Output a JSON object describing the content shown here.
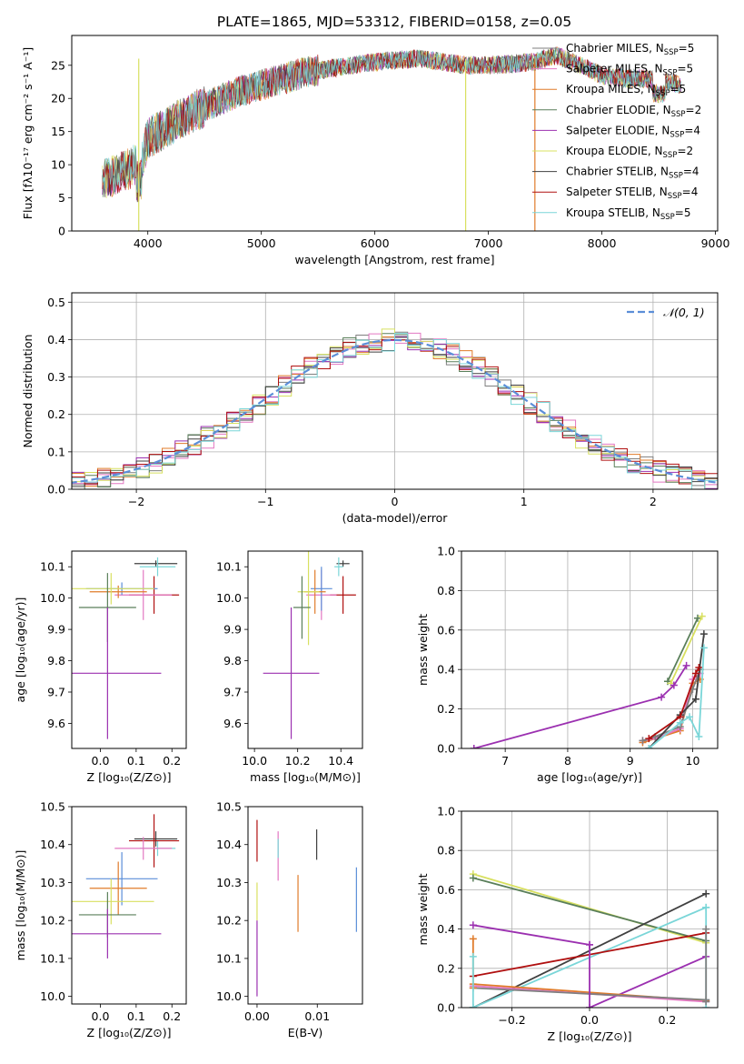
{
  "page_title": "PLATE=1865, MJD=53312, FIBERID=0158, z=0.05",
  "colors": {
    "grid": "#b0b0b0",
    "gaussian": "#5b8ed8"
  },
  "chart_data": [
    {
      "id": "spectrum",
      "type": "line",
      "title": "PLATE=1865, MJD=53312, FIBERID=0158, z=0.05",
      "xlabel": "wavelength [Angstrom, rest frame]",
      "ylabel": "Flux [fλ10⁻¹⁷ erg cm⁻² s⁻¹ A⁻¹]",
      "xlim": [
        3330,
        9020
      ],
      "ylim": [
        0,
        29.5
      ],
      "xticks": [
        4000,
        5000,
        6000,
        7000,
        8000,
        9000
      ],
      "yticks": [
        0,
        5,
        10,
        15,
        20,
        25
      ],
      "grid": false,
      "legend_position": "top-right",
      "continuum_envelope": {
        "x": [
          3600,
          3700,
          3850,
          3950,
          4000,
          4200,
          4400,
          4600,
          4800,
          5000,
          5200,
          5400,
          5600,
          5800,
          6000,
          6200,
          6400,
          6600,
          6800,
          7000,
          7200,
          7400,
          7600,
          7800,
          8000,
          8200,
          8400,
          8600,
          8700
        ],
        "y": [
          7.5,
          8.5,
          9.5,
          11,
          14,
          16,
          18,
          19.5,
          21,
          22,
          23,
          24,
          24.5,
          25,
          25.5,
          25.8,
          26,
          25.5,
          25,
          25,
          25.2,
          25.5,
          26.5,
          25,
          23.5,
          23,
          23,
          22.5,
          22
        ]
      },
      "series": [
        {
          "name": "Chabrier MILES, Nₛₛₚ=5",
          "label_main": "Chabrier MILES, N",
          "label_sub": "SSP",
          "label_tail": "=5",
          "color": "#7f7f7f"
        },
        {
          "name": "Salpeter MILES, N=5",
          "label_main": "Salpeter MILES, N",
          "label_sub": "SSP",
          "label_tail": "=5",
          "color": "#e377c2"
        },
        {
          "name": "Kroupa MILES, N=5",
          "label_main": "Kroupa MILES, N",
          "label_sub": "SSP",
          "label_tail": "=5",
          "color": "#e07b2a"
        },
        {
          "name": "Chabrier ELODIE, N=2",
          "label_main": "Chabrier ELODIE, N",
          "label_sub": "SSP",
          "label_tail": "=2",
          "color": "#5a7f5a"
        },
        {
          "name": "Salpeter ELODIE, N=4",
          "label_main": "Salpeter ELODIE, N",
          "label_sub": "SSP",
          "label_tail": "=4",
          "color": "#9b30b0"
        },
        {
          "name": "Kroupa ELODIE, N=2",
          "label_main": "Kroupa ELODIE, N",
          "label_sub": "SSP",
          "label_tail": "=2",
          "color": "#d8e060"
        },
        {
          "name": "Chabrier STELIB, N=4",
          "label_main": "Chabrier STELIB, N",
          "label_sub": "SSP",
          "label_tail": "=4",
          "color": "#404040"
        },
        {
          "name": "Salpeter STELIB, N=4",
          "label_main": "Salpeter STELIB, N",
          "label_sub": "SSP",
          "label_tail": "=4",
          "color": "#b01010"
        },
        {
          "name": "Kroupa STELIB, N=5",
          "label_main": "Kroupa STELIB, N",
          "label_sub": "SSP",
          "label_tail": "=5",
          "color": "#7ad6d8"
        }
      ]
    },
    {
      "id": "residuals",
      "type": "histogram",
      "xlabel": "(data-model)/error",
      "ylabel": "Normed distribution",
      "xlim": [
        -2.5,
        2.5
      ],
      "ylim": [
        0,
        0.525
      ],
      "xticks": [
        -2,
        -1,
        0,
        1,
        2
      ],
      "yticks": [
        0.0,
        0.1,
        0.2,
        0.3,
        0.4,
        0.5
      ],
      "grid": true,
      "legend_position": "top-right",
      "legend_entry": "𝒩(0, 1)",
      "bin_width": 0.1
    },
    {
      "id": "age_vs_Z",
      "type": "scatter",
      "xlabel": "Z [log₁₀(Z/Z⊙)]",
      "ylabel": "age  [log₁₀(age/yr)]",
      "xlim": [
        -0.08,
        0.24
      ],
      "ylim": [
        9.52,
        10.15
      ],
      "xticks": [
        0.0,
        0.1,
        0.2
      ],
      "yticks": [
        9.6,
        9.7,
        9.8,
        9.9,
        10.0,
        10.1
      ],
      "points": [
        {
          "x": 0.155,
          "y": 10.11,
          "xerr": 0.06,
          "yerr": 0.01,
          "color": "#404040"
        },
        {
          "x": 0.16,
          "y": 10.1,
          "xerr": 0.05,
          "yerr": 0.03,
          "color": "#7ad6d8"
        },
        {
          "x": 0.15,
          "y": 10.01,
          "xerr": 0.07,
          "yerr": 0.06,
          "color": "#b01010"
        },
        {
          "x": 0.12,
          "y": 10.01,
          "xerr": 0.08,
          "yerr": 0.08,
          "color": "#e377c2"
        },
        {
          "x": 0.06,
          "y": 10.03,
          "xerr": 0.1,
          "yerr": 0.02,
          "color": "#5b8ed8"
        },
        {
          "x": 0.05,
          "y": 10.02,
          "xerr": 0.08,
          "yerr": 0.02,
          "color": "#e07b2a"
        },
        {
          "x": 0.03,
          "y": 10.03,
          "xerr": 0.12,
          "yerr": 0.05,
          "color": "#d8e060"
        },
        {
          "x": 0.02,
          "y": 9.97,
          "xerr": 0.08,
          "yerr": 0.11,
          "color": "#5a7f5a"
        },
        {
          "x": 0.02,
          "y": 9.76,
          "xerr": 0.15,
          "yerr": 0.21,
          "color": "#9b30b0"
        }
      ]
    },
    {
      "id": "age_vs_mass",
      "type": "scatter",
      "xlabel": "mass [log₁₀(M/M⊙)]",
      "xlim": [
        9.97,
        10.5
      ],
      "ylim": [
        9.52,
        10.15
      ],
      "xticks": [
        10.0,
        10.2,
        10.4
      ],
      "yticks": [
        9.6,
        9.7,
        9.8,
        9.9,
        10.0,
        10.1
      ],
      "points": [
        {
          "x": 10.41,
          "y": 10.11,
          "xerr": 0.03,
          "yerr": 0.01,
          "color": "#404040"
        },
        {
          "x": 10.39,
          "y": 10.1,
          "xerr": 0.02,
          "yerr": 0.03,
          "color": "#7ad6d8"
        },
        {
          "x": 10.41,
          "y": 10.01,
          "xerr": 0.06,
          "yerr": 0.06,
          "color": "#b01010"
        },
        {
          "x": 10.31,
          "y": 10.01,
          "xerr": 0.07,
          "yerr": 0.08,
          "color": "#e377c2"
        },
        {
          "x": 10.31,
          "y": 10.03,
          "xerr": 0.05,
          "yerr": 0.07,
          "color": "#5b8ed8"
        },
        {
          "x": 10.28,
          "y": 10.02,
          "xerr": 0.05,
          "yerr": 0.07,
          "color": "#e07b2a"
        },
        {
          "x": 10.25,
          "y": 10.02,
          "xerr": 0.05,
          "yerr": 0.17,
          "color": "#d8e060"
        },
        {
          "x": 10.22,
          "y": 9.97,
          "xerr": 0.04,
          "yerr": 0.1,
          "color": "#5a7f5a"
        },
        {
          "x": 10.17,
          "y": 9.76,
          "xerr": 0.13,
          "yerr": 0.21,
          "color": "#9b30b0"
        }
      ]
    },
    {
      "id": "massweight_vs_age",
      "type": "line",
      "xlabel": "age  [log₁₀(age/yr)]",
      "ylabel": "mass weight",
      "xlim": [
        6.3,
        10.4
      ],
      "ylim": [
        0,
        1.0
      ],
      "xticks": [
        7,
        8,
        9,
        10
      ],
      "yticks": [
        0.0,
        0.2,
        0.4,
        0.6,
        0.8,
        1.0
      ],
      "grid": true,
      "series": [
        {
          "color": "#e07b2a",
          "x": [
            9.2,
            9.4,
            9.8,
            10.0,
            10.12
          ],
          "y": [
            0.03,
            0.05,
            0.09,
            0.33,
            0.35
          ]
        },
        {
          "color": "#e377c2",
          "x": [
            9.2,
            9.4,
            9.8,
            10.0,
            10.12
          ],
          "y": [
            0.04,
            0.05,
            0.1,
            0.35,
            0.38
          ]
        },
        {
          "color": "#7f7f7f",
          "x": [
            9.2,
            9.4,
            9.8,
            10.0,
            10.12
          ],
          "y": [
            0.04,
            0.06,
            0.11,
            0.3,
            0.4
          ]
        },
        {
          "color": "#5a7f5a",
          "x": [
            9.6,
            10.08
          ],
          "y": [
            0.34,
            0.66
          ]
        },
        {
          "color": "#d8e060",
          "x": [
            9.65,
            10.15
          ],
          "y": [
            0.33,
            0.67
          ]
        },
        {
          "color": "#9b30b0",
          "x": [
            6.5,
            9.5,
            9.7,
            9.9
          ],
          "y": [
            0.0,
            0.26,
            0.32,
            0.42
          ]
        },
        {
          "color": "#404040",
          "x": [
            9.3,
            9.8,
            10.05,
            10.18
          ],
          "y": [
            0.0,
            0.17,
            0.25,
            0.58
          ]
        },
        {
          "color": "#b01010",
          "x": [
            9.3,
            9.8,
            10.05,
            10.1
          ],
          "y": [
            0.05,
            0.16,
            0.38,
            0.41
          ]
        },
        {
          "color": "#7ad6d8",
          "x": [
            9.3,
            9.8,
            9.95,
            10.1,
            10.18
          ],
          "y": [
            0.0,
            0.13,
            0.16,
            0.06,
            0.51
          ]
        }
      ]
    },
    {
      "id": "mass_vs_Z",
      "type": "scatter",
      "xlabel": "Z [log₁₀(Z/Z⊙)]",
      "ylabel": "mass [log₁₀(M/M⊙)]",
      "xlim": [
        -0.08,
        0.24
      ],
      "ylim": [
        9.98,
        10.5
      ],
      "xticks": [
        0.0,
        0.1,
        0.2
      ],
      "yticks": [
        10.0,
        10.1,
        10.2,
        10.3,
        10.4,
        10.5
      ],
      "points": [
        {
          "x": 0.155,
          "y": 10.415,
          "xerr": 0.06,
          "yerr": 0.02,
          "color": "#404040"
        },
        {
          "x": 0.16,
          "y": 10.39,
          "xerr": 0.05,
          "yerr": 0.02,
          "color": "#7ad6d8"
        },
        {
          "x": 0.15,
          "y": 10.41,
          "xerr": 0.07,
          "yerr": 0.07,
          "color": "#b01010"
        },
        {
          "x": 0.12,
          "y": 10.39,
          "xerr": 0.08,
          "yerr": 0.03,
          "color": "#e377c2"
        },
        {
          "x": 0.06,
          "y": 10.31,
          "xerr": 0.1,
          "yerr": 0.07,
          "color": "#5b8ed8"
        },
        {
          "x": 0.05,
          "y": 10.285,
          "xerr": 0.08,
          "yerr": 0.07,
          "color": "#e07b2a"
        },
        {
          "x": 0.03,
          "y": 10.25,
          "xerr": 0.12,
          "yerr": 0.06,
          "color": "#d8e060"
        },
        {
          "x": 0.02,
          "y": 10.215,
          "xerr": 0.08,
          "yerr": 0.06,
          "color": "#5a7f5a"
        },
        {
          "x": 0.02,
          "y": 10.165,
          "xerr": 0.15,
          "yerr": 0.065,
          "color": "#9b30b0"
        }
      ]
    },
    {
      "id": "mass_vs_ebv",
      "type": "scatter",
      "xlabel": "E(B-V)",
      "xlim": [
        -0.0015,
        0.0175
      ],
      "ylim": [
        9.98,
        10.5
      ],
      "xticks": [
        0.0,
        0.01
      ],
      "yticks": [
        10.0,
        10.1,
        10.2,
        10.3,
        10.4,
        10.5
      ],
      "points": [
        {
          "x": 0.0,
          "y": 10.41,
          "xerr": 0.0,
          "yerr": 0.055,
          "color": "#b01010"
        },
        {
          "x": 0.0,
          "y": 10.25,
          "xerr": 0.0,
          "yerr": 0.05,
          "color": "#d8e060"
        },
        {
          "x": 0.0,
          "y": 10.1,
          "xerr": 0.0,
          "yerr": 0.1,
          "color": "#9b30b0"
        },
        {
          "x": 0.0035,
          "y": 10.37,
          "xerr": 0.0,
          "yerr": 0.065,
          "color": "#e377c2"
        },
        {
          "x": 0.0035,
          "y": 10.39,
          "xerr": 0.0,
          "yerr": 0.025,
          "color": "#7ad6d8"
        },
        {
          "x": 0.0068,
          "y": 10.245,
          "xerr": 0.0,
          "yerr": 0.075,
          "color": "#e07b2a"
        },
        {
          "x": 0.0099,
          "y": 10.4,
          "xerr": 0.0,
          "yerr": 0.04,
          "color": "#404040"
        },
        {
          "x": 0.0165,
          "y": 10.255,
          "xerr": 0.0,
          "yerr": 0.085,
          "color": "#5b8ed8"
        }
      ]
    },
    {
      "id": "massweight_vs_Z",
      "type": "line",
      "xlabel": "Z [log₁₀(Z/Z⊙)]",
      "ylabel": "mass weight",
      "xlim": [
        -0.33,
        0.33
      ],
      "ylim": [
        0,
        1.0
      ],
      "xticks": [
        -0.2,
        0.0,
        0.2
      ],
      "yticks": [
        0.0,
        0.2,
        0.4,
        0.6,
        0.8,
        1.0
      ],
      "grid": true,
      "series": [
        {
          "color": "#d8e060",
          "x": [
            -0.3,
            0.3
          ],
          "y": [
            0.68,
            0.33
          ]
        },
        {
          "color": "#5a7f5a",
          "x": [
            -0.3,
            0.3
          ],
          "y": [
            0.66,
            0.34
          ]
        },
        {
          "color": "#9b30b0",
          "x": [
            -0.3,
            0.0
          ],
          "y": [
            0.42,
            0.32
          ]
        },
        {
          "color": "#9b30b0",
          "x": [
            0.0,
            0.3
          ],
          "y": [
            0.0,
            0.26
          ]
        },
        {
          "color": "#404040",
          "x": [
            -0.3,
            0.3
          ],
          "y": [
            0.0,
            0.58
          ]
        },
        {
          "color": "#7ad6d8",
          "x": [
            -0.3,
            0.3
          ],
          "y": [
            0.0,
            0.51
          ]
        },
        {
          "color": "#b01010",
          "x": [
            -0.3,
            0.3
          ],
          "y": [
            0.16,
            0.38
          ]
        },
        {
          "color": "#e07b2a",
          "x": [
            -0.3,
            0.3
          ],
          "y": [
            0.12,
            0.035
          ]
        },
        {
          "color": "#e377c2",
          "x": [
            -0.3,
            0.3
          ],
          "y": [
            0.11,
            0.03
          ]
        },
        {
          "color": "#7f7f7f",
          "x": [
            -0.3,
            0.3
          ],
          "y": [
            0.1,
            0.04
          ]
        },
        {
          "color": "#e07b2a",
          "x": [
            -0.3,
            -0.3
          ],
          "y": [
            0.1,
            0.35
          ]
        },
        {
          "color": "#7ad6d8",
          "x": [
            -0.3,
            -0.3
          ],
          "y": [
            0.0,
            0.26
          ]
        },
        {
          "color": "#9b30b0",
          "x": [
            0.0,
            0.0
          ],
          "y": [
            0.0,
            0.32
          ]
        },
        {
          "color": "#7ad6d8",
          "x": [
            0.3,
            0.3
          ],
          "y": [
            0.0,
            0.51
          ]
        },
        {
          "color": "#7f7f7f",
          "x": [
            0.3,
            0.3
          ],
          "y": [
            0.03,
            0.4
          ]
        }
      ]
    }
  ]
}
